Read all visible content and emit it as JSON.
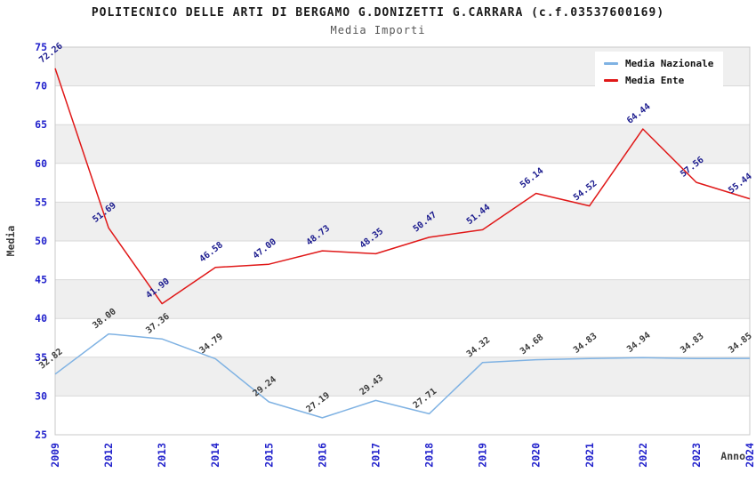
{
  "title": "POLITECNICO DELLE ARTI DI BERGAMO G.DONIZETTI G.CARRARA (c.f.03537600169)",
  "subtitle": "Media Importi",
  "legend": {
    "position": "top-right",
    "items": [
      {
        "label": "Media Nazionale",
        "color": "#7fb2e3"
      },
      {
        "label": "Media Ente",
        "color": "#e01818"
      }
    ]
  },
  "chart_data": {
    "type": "line",
    "x": [
      "2009",
      "2012",
      "2013",
      "2014",
      "2015",
      "2016",
      "2017",
      "2018",
      "2019",
      "2020",
      "2021",
      "2022",
      "2023",
      "2024"
    ],
    "series": [
      {
        "name": "Media Nazionale",
        "color": "#7fb2e3",
        "label_color": "#3b3b3b",
        "values": [
          32.82,
          38.0,
          37.36,
          34.79,
          29.24,
          27.19,
          29.43,
          27.71,
          34.32,
          34.68,
          34.83,
          34.94,
          34.83,
          34.85
        ]
      },
      {
        "name": "Media Ente",
        "color": "#e01818",
        "label_color": "#1b1b8e",
        "values": [
          72.26,
          51.69,
          41.9,
          46.58,
          47.0,
          48.73,
          48.35,
          50.47,
          51.44,
          56.14,
          54.52,
          64.44,
          57.56,
          55.44
        ]
      }
    ],
    "xlabel": "Anno",
    "ylabel": "Media",
    "ylim": [
      25,
      75
    ],
    "yticks": [
      25,
      30,
      35,
      40,
      45,
      50,
      55,
      60,
      65,
      70,
      75
    ],
    "grid": "horizontal-bands-alternating",
    "band_color": "#efefef",
    "grid_color": "#d9d9d9",
    "border_color": "#c8c8c8",
    "tick_label_color": "#2222cc",
    "axis_title_color": "#3b3b3b",
    "legend_position": "top-right"
  }
}
